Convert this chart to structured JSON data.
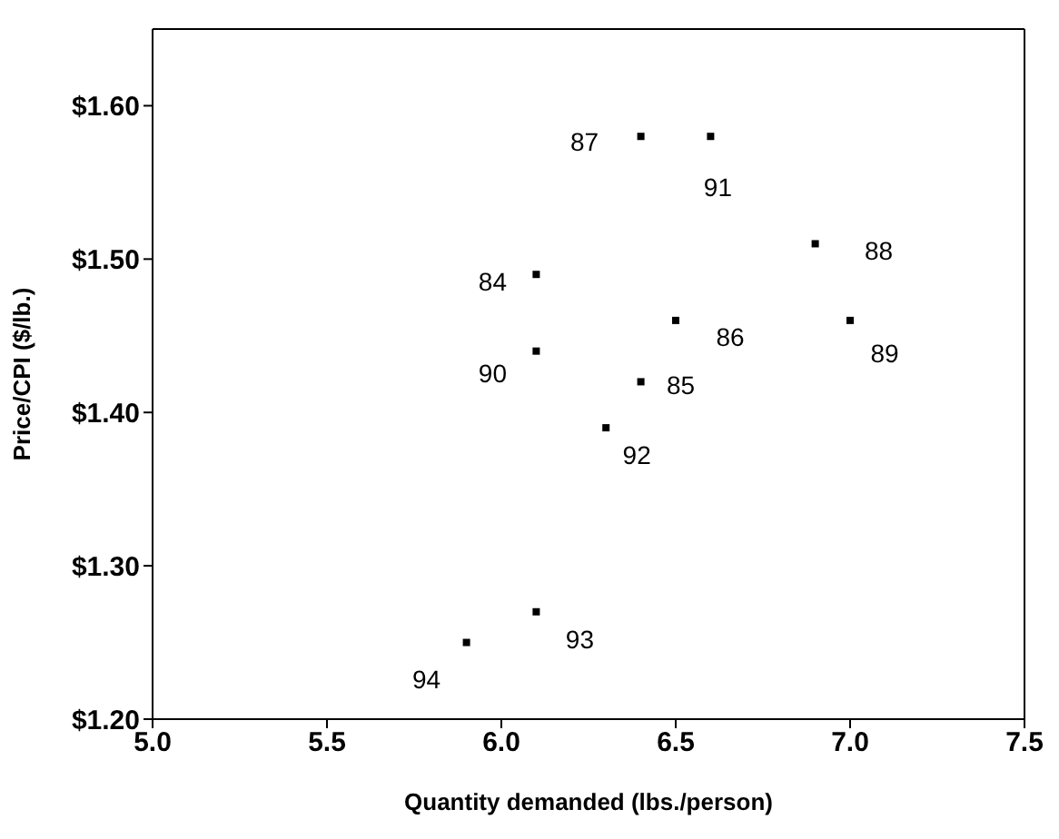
{
  "chart_data": {
    "type": "scatter",
    "xlabel": "Quantity demanded (lbs./person)",
    "ylabel": "Price/CPI ($/lb.)",
    "x": [
      6.1,
      6.4,
      6.5,
      6.4,
      6.9,
      7.0,
      6.1,
      6.6,
      6.3,
      6.1,
      5.9
    ],
    "values": [
      1.49,
      1.42,
      1.46,
      1.58,
      1.51,
      1.46,
      1.44,
      1.58,
      1.39,
      1.27,
      1.25
    ],
    "color": "#000000",
    "marker": "square",
    "xlim": [
      5.0,
      7.5
    ],
    "xticks": [
      {
        "value": 5,
        "label": "5.0"
      },
      5.5,
      {
        "value": 6,
        "label": "6.0"
      },
      6.5,
      {
        "value": 7,
        "label": "7.0"
      },
      7.5
    ],
    "ylim": [
      1.2,
      1.65
    ],
    "yticks": [
      {
        "value": 1.2,
        "label": "$1.20"
      },
      {
        "value": 1.3,
        "label": "$1.30"
      },
      {
        "value": 1.4,
        "label": "$1.40"
      },
      {
        "value": 1.5,
        "label": "$1.50"
      },
      {
        "value": 1.6,
        "label": "$1.60"
      }
    ],
    "annotations": [
      {
        "text": "84",
        "x": 6.1,
        "y": 1.49
      },
      {
        "text": "85",
        "x": 6.4,
        "y": 1.42
      },
      {
        "text": "86",
        "x": 6.5,
        "y": 1.46
      },
      {
        "text": "87",
        "x": 6.4,
        "y": 1.58
      },
      {
        "text": "88",
        "x": 6.9,
        "y": 1.51
      },
      {
        "text": "89",
        "x": 7.0,
        "y": 1.46
      },
      {
        "text": "90",
        "x": 6.1,
        "y": 1.44
      },
      {
        "text": "91",
        "x": 6.6,
        "y": 1.58
      },
      {
        "text": "92",
        "x": 6.3,
        "y": 1.39
      },
      {
        "text": "93",
        "x": 6.1,
        "y": 1.27
      },
      {
        "text": "94",
        "x": 5.9,
        "y": 1.25
      }
    ]
  }
}
